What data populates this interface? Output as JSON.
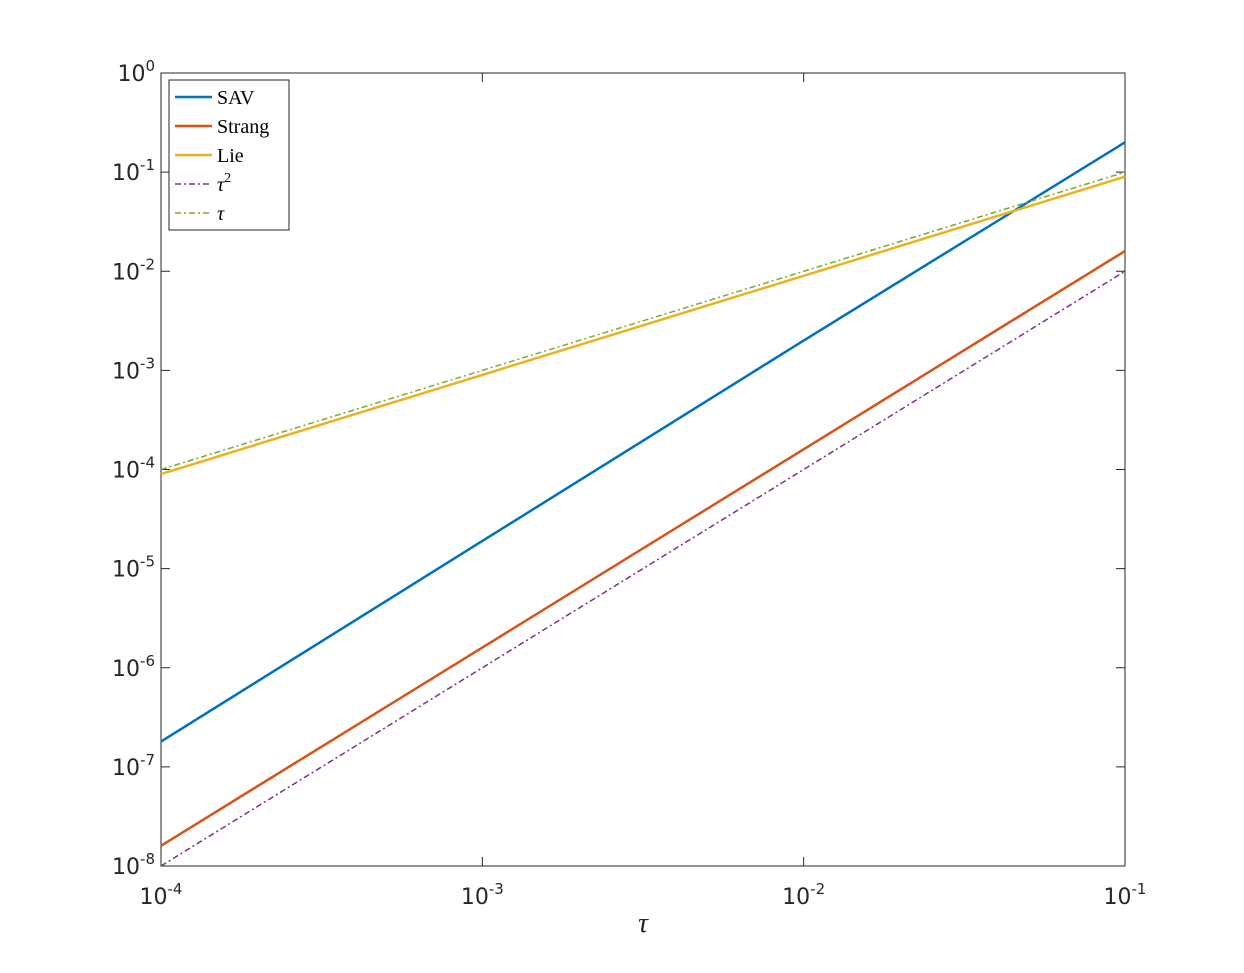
{
  "chart_data": {
    "type": "line",
    "x_label": "τ",
    "x": [
      0.0001,
      0.001,
      0.01,
      0.1
    ],
    "series": [
      {
        "name": "SAV",
        "color": "#0072BD",
        "style": "solid",
        "values": [
          1.8e-07,
          1.9e-05,
          0.002,
          0.2
        ]
      },
      {
        "name": "Strang",
        "color": "#D95319",
        "style": "solid",
        "values": [
          1.6e-08,
          1.6e-06,
          0.00016,
          0.016
        ]
      },
      {
        "name": "Lie",
        "color": "#EDB120",
        "style": "solid",
        "values": [
          9e-05,
          0.0009,
          0.009,
          0.09
        ]
      },
      {
        "name": [
          "τ",
          "2"
        ],
        "color": "#7E2F8E",
        "style": "dashdot",
        "values": [
          1e-08,
          1e-06,
          0.0001,
          0.01
        ]
      },
      {
        "name": "τ",
        "color": "#77AC30",
        "style": "dashdot",
        "values": [
          0.0001,
          0.001,
          0.01,
          0.1
        ]
      }
    ],
    "xscale": "log",
    "yscale": "log",
    "xlim": [
      0.0001,
      0.1
    ],
    "ylim": [
      1e-08,
      1
    ],
    "xticks": [
      {
        "value": 0.0001,
        "label": [
          "10",
          "-4"
        ]
      },
      {
        "value": 0.001,
        "label": [
          "10",
          "-3"
        ]
      },
      {
        "value": 0.01,
        "label": [
          "10",
          "-2"
        ]
      },
      {
        "value": 0.1,
        "label": [
          "10",
          "-1"
        ]
      }
    ],
    "yticks": [
      {
        "value": 1e-08,
        "label": [
          "10",
          "-8"
        ]
      },
      {
        "value": 1e-07,
        "label": [
          "10",
          "-7"
        ]
      },
      {
        "value": 1e-06,
        "label": [
          "10",
          "-6"
        ]
      },
      {
        "value": 1e-05,
        "label": [
          "10",
          "-5"
        ]
      },
      {
        "value": 0.0001,
        "label": [
          "10",
          "-4"
        ]
      },
      {
        "value": 0.001,
        "label": [
          "10",
          "-3"
        ]
      },
      {
        "value": 0.01,
        "label": [
          "10",
          "-2"
        ]
      },
      {
        "value": 0.1,
        "label": [
          "10",
          "-1"
        ]
      },
      {
        "value": 1,
        "label": [
          "10",
          "0"
        ]
      }
    ],
    "legend": "upper left"
  }
}
